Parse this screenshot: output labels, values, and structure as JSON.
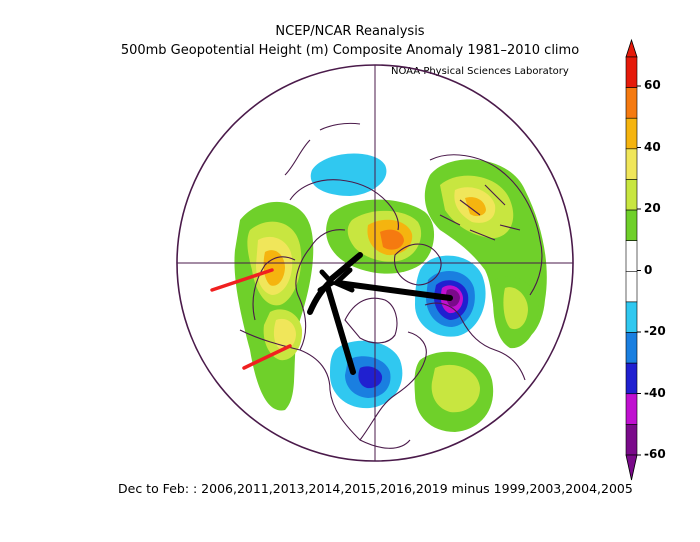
{
  "header": {
    "title_line1": "NCEP/NCAR Reanalysis",
    "title_line2": "500mb Geopotential Height (m) Composite Anomaly 1981–2010 climo",
    "credit": "NOAA Physical Sciences Laboratory"
  },
  "footer": {
    "caption": "Dec to Feb: : 2006,2011,2013,2014,2015,2016,2019 minus 1999,2003,2004,2005"
  },
  "colorbar": {
    "labels": [
      "60",
      "40",
      "20",
      "0",
      "-20",
      "-40",
      "-60"
    ],
    "colors": [
      "#e51a0a",
      "#f57a10",
      "#f5b40f",
      "#f0e65a",
      "#c8e640",
      "#6fd02a",
      "#ffffff",
      "#ffffff",
      "#30c8f0",
      "#1a7fe0",
      "#2020d0",
      "#c010d0",
      "#7a0a8a"
    ]
  },
  "map": {
    "projection": "north-polar-stereographic",
    "anomaly_colors": {
      "pos_20": "#6fd02a",
      "pos_30": "#c8e640",
      "pos_40": "#f0e65a",
      "pos_50": "#f5b40f",
      "pos_60": "#f57a10",
      "neg_20": "#30c8f0",
      "neg_30": "#1a7fe0",
      "neg_40": "#2020d0",
      "neg_50": "#c010d0",
      "neg_60": "#7a0a8a"
    },
    "annotations": {
      "arrow_color": "#000000",
      "line_color": "#f02020"
    }
  }
}
